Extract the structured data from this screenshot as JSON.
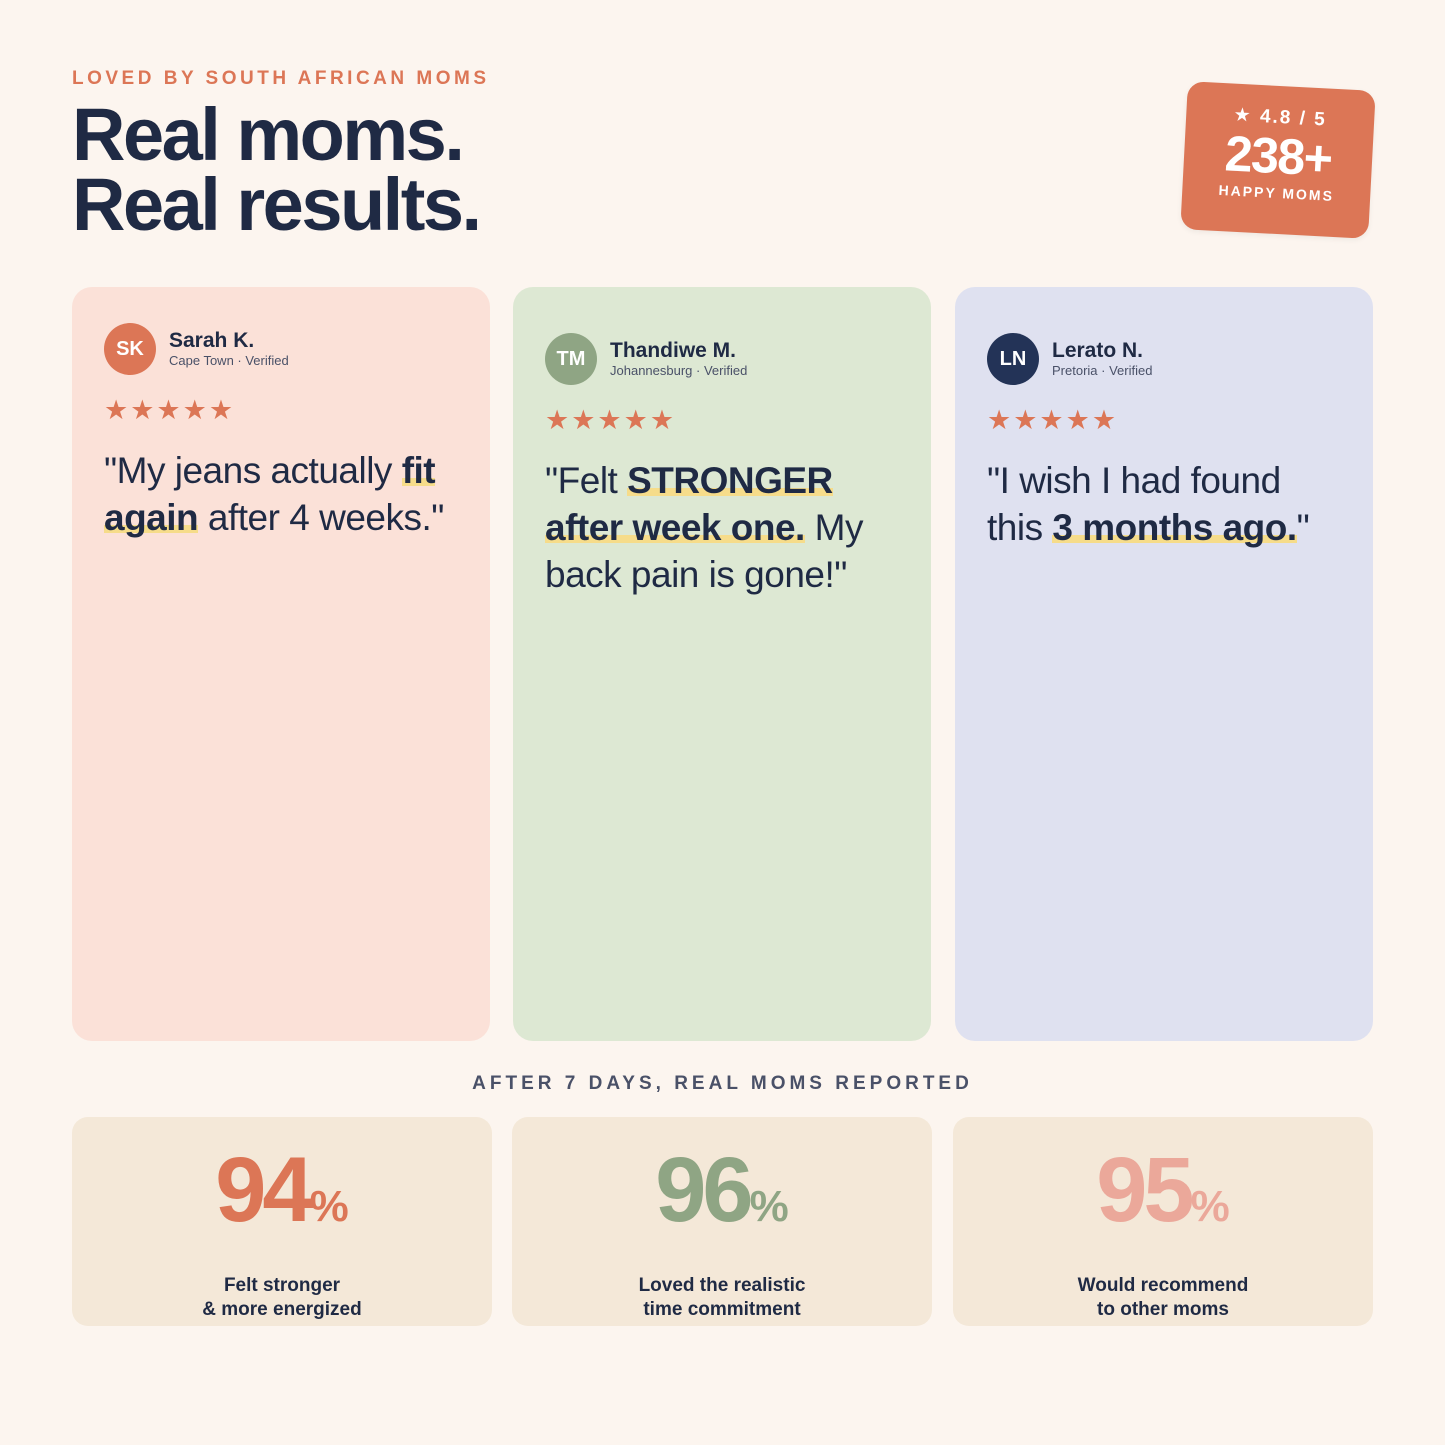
{
  "header": {
    "eyebrow": "LOVED BY SOUTH AFRICAN MOMS",
    "headline_line1": "Real moms.",
    "headline_line2": "Real results."
  },
  "badge": {
    "rating": "★ 4.8 / 5",
    "count": "238+",
    "label": "HAPPY MOMS"
  },
  "testimonials": [
    {
      "initials": "SK",
      "name": "Sarah K.",
      "meta": "Cape Town · Verified",
      "stars": "★★★★★",
      "quote_before": "\"My jeans actually ",
      "quote_highlight": "fit again",
      "quote_after": " after 4 weeks.\"",
      "avatar_color": "#dc7656",
      "card_color": "#fbe1d8"
    },
    {
      "initials": "TM",
      "name": "Thandiwe M.",
      "meta": "Johannesburg · Verified",
      "stars": "★★★★★",
      "quote_before": "\"Felt ",
      "quote_highlight": "STRONGER after week one.",
      "quote_after": " My back pain is gone!\"",
      "avatar_color": "#8fa584",
      "card_color": "#dde8d3"
    },
    {
      "initials": "LN",
      "name": "Lerato N.",
      "meta": "Pretoria · Verified",
      "stars": "★★★★★",
      "quote_before": "\"I wish I had found this ",
      "quote_highlight": "3 months ago.",
      "quote_after": "\"",
      "avatar_color": "#233357",
      "card_color": "#dfe1f0"
    }
  ],
  "stats_section": {
    "label": "AFTER 7 DAYS, REAL MOMS REPORTED",
    "items": [
      {
        "value": "94",
        "unit": "%",
        "description": "Felt stronger\n& more energized",
        "color": "#dc7656"
      },
      {
        "value": "96",
        "unit": "%",
        "description": "Loved the realistic\ntime commitment",
        "color": "#8fa584"
      },
      {
        "value": "95",
        "unit": "%",
        "description": "Would recommend\nto other moms",
        "color": "#eba89a"
      }
    ]
  }
}
